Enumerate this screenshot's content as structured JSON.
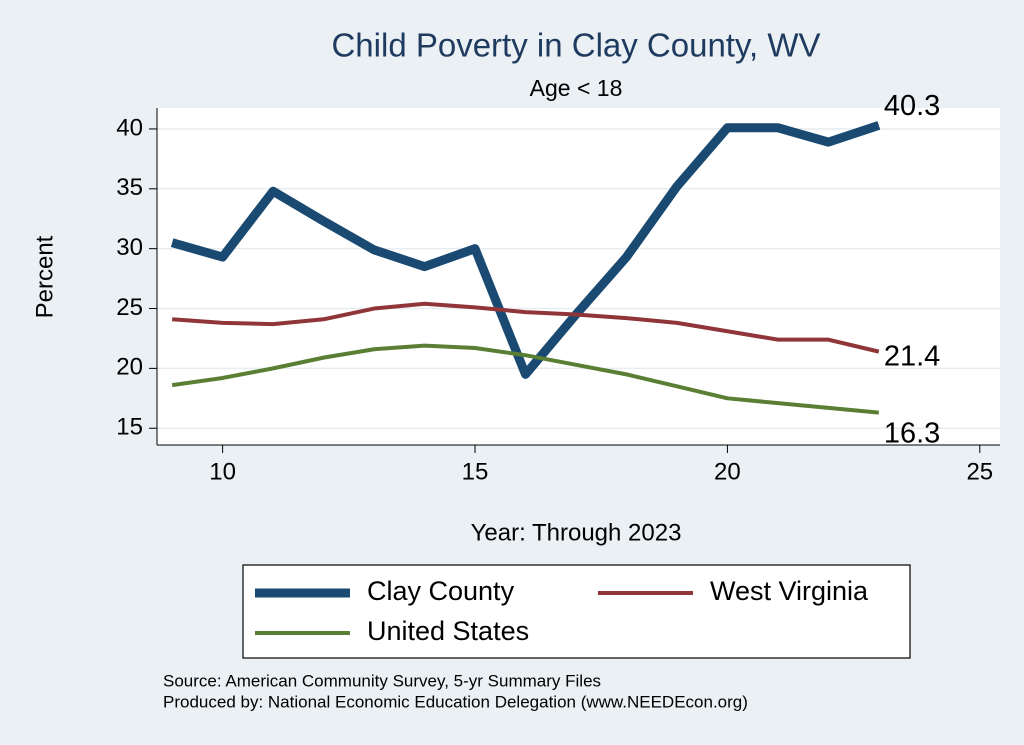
{
  "chart_data": {
    "type": "line",
    "title": "Child Poverty in Clay County, WV",
    "subtitle": "Age < 18",
    "xlabel": "Year: Through 2023",
    "ylabel": "Percent",
    "x": [
      9,
      10,
      11,
      12,
      13,
      14,
      15,
      16,
      17,
      18,
      19,
      20,
      21,
      22,
      23
    ],
    "series": [
      {
        "name": "Clay County",
        "color": "#1a4a72",
        "values": [
          30.5,
          29.3,
          34.8,
          32.3,
          29.9,
          28.5,
          30.0,
          19.5,
          24.5,
          29.3,
          35.2,
          40.1,
          40.1,
          38.9,
          40.3
        ]
      },
      {
        "name": "West Virginia",
        "color": "#903638",
        "values": [
          24.1,
          23.8,
          23.7,
          24.1,
          25.0,
          25.4,
          25.1,
          24.7,
          24.5,
          24.2,
          23.8,
          23.1,
          22.4,
          22.4,
          21.4
        ]
      },
      {
        "name": "United States",
        "color": "#5a7f34",
        "values": [
          18.6,
          19.2,
          20.0,
          20.9,
          21.6,
          21.9,
          21.7,
          21.1,
          20.3,
          19.5,
          18.5,
          17.5,
          17.1,
          16.7,
          16.3
        ]
      }
    ],
    "xlim": [
      8.7,
      25.4
    ],
    "ylim": [
      13.6,
      41.75
    ],
    "xticks": [
      10,
      15,
      20,
      25
    ],
    "yticks": [
      15,
      20,
      25,
      30,
      35,
      40
    ],
    "grid": true,
    "legend_position": "bottom",
    "notes": [
      "Source: American Community Survey, 5-yr Summary Files",
      "Produced by: National Economic Education Delegation (www.NEEDEcon.org)"
    ]
  }
}
